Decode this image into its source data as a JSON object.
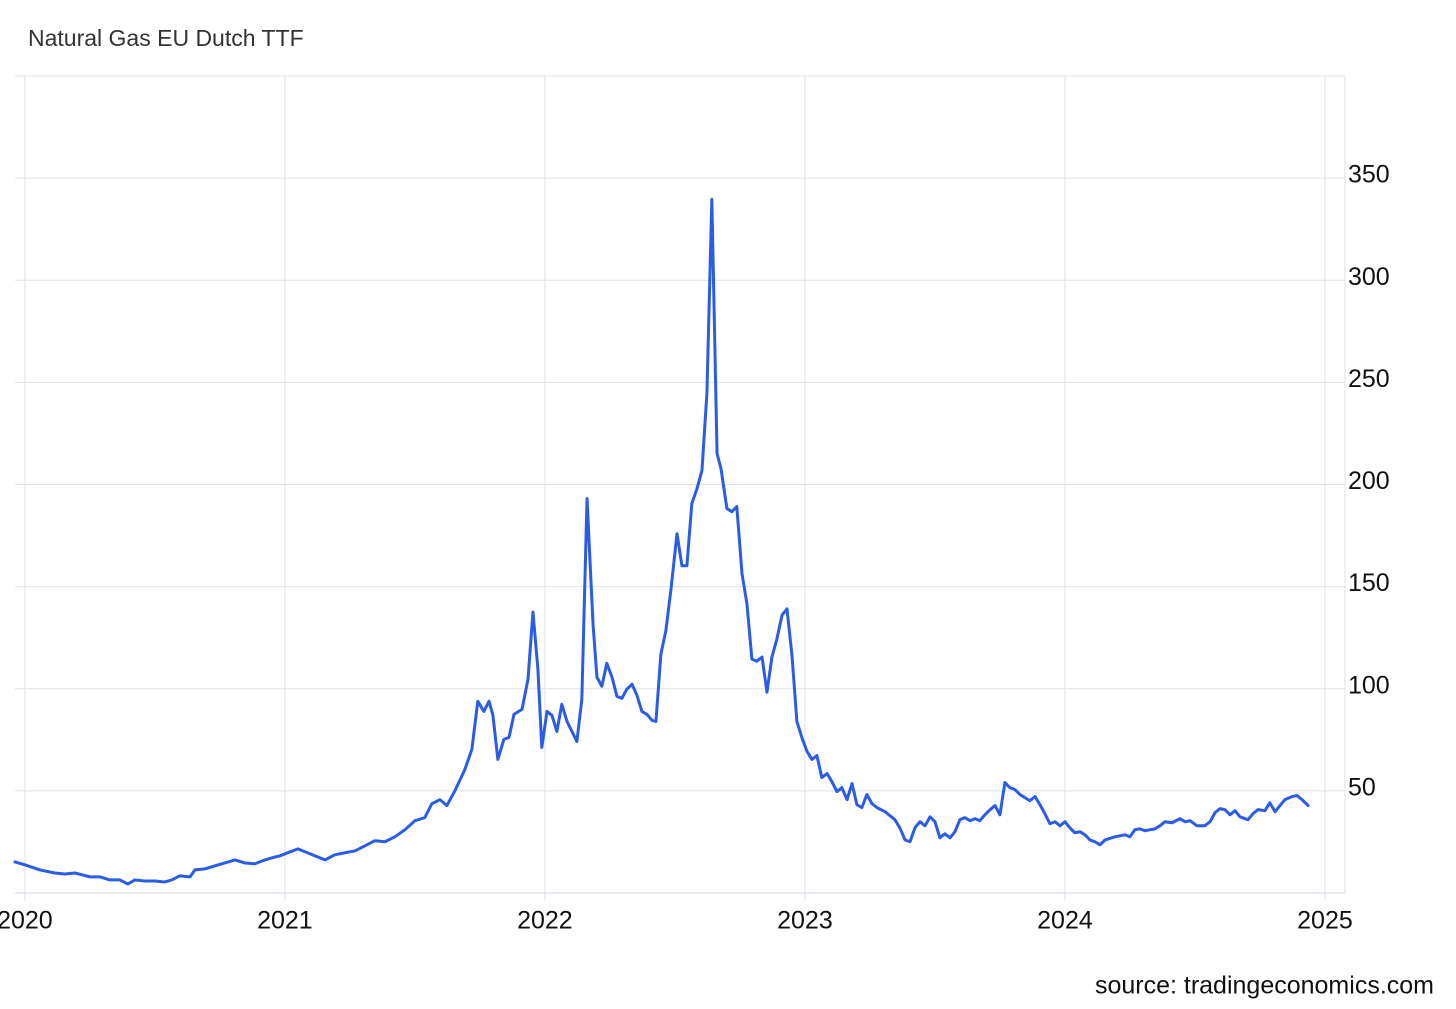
{
  "chart_data": {
    "type": "line",
    "title": "Natural Gas EU Dutch TTF",
    "source": "source: tradingeconomics.com",
    "color": "#2b5ce6",
    "grid": true,
    "xlim": [
      2019.962,
      2025.077
    ],
    "xticks": [
      2020,
      2021,
      2022,
      2023,
      2024,
      2025
    ],
    "ylim": [
      0,
      400
    ],
    "yticks": [
      50,
      100,
      150,
      200,
      250,
      300,
      350
    ],
    "x": [
      2019.962,
      2020.0,
      2020.058,
      2020.115,
      2020.154,
      2020.192,
      2020.25,
      2020.288,
      2020.327,
      2020.365,
      2020.396,
      2020.423,
      2020.462,
      2020.5,
      2020.538,
      2020.565,
      2020.596,
      2020.635,
      2020.654,
      2020.692,
      2020.731,
      2020.769,
      2020.808,
      2020.846,
      2020.885,
      2020.912,
      2020.95,
      2020.981,
      2021.019,
      2021.05,
      2021.096,
      2021.154,
      2021.192,
      2021.231,
      2021.269,
      2021.308,
      2021.346,
      2021.385,
      2021.423,
      2021.462,
      2021.5,
      2021.538,
      2021.565,
      2021.596,
      2021.623,
      2021.654,
      2021.692,
      2021.719,
      2021.742,
      2021.765,
      2021.785,
      2021.8,
      2021.819,
      2021.842,
      2021.862,
      2021.881,
      2021.912,
      2021.935,
      2021.954,
      2021.973,
      2021.988,
      2022.008,
      2022.027,
      2022.046,
      2022.065,
      2022.085,
      2022.123,
      2022.142,
      2022.162,
      2022.185,
      2022.2,
      2022.219,
      2022.238,
      2022.258,
      2022.277,
      2022.296,
      2022.315,
      2022.335,
      2022.354,
      2022.373,
      2022.392,
      2022.412,
      2022.427,
      2022.446,
      2022.465,
      2022.485,
      2022.508,
      2022.527,
      2022.546,
      2022.565,
      2022.585,
      2022.604,
      2022.623,
      2022.642,
      2022.662,
      2022.677,
      2022.7,
      2022.719,
      2022.738,
      2022.758,
      2022.777,
      2022.796,
      2022.815,
      2022.835,
      2022.854,
      2022.873,
      2022.892,
      2022.912,
      2022.931,
      2022.95,
      2022.969,
      2022.988,
      2023.008,
      2023.027,
      2023.046,
      2023.065,
      2023.085,
      2023.104,
      2023.123,
      2023.142,
      2023.162,
      2023.181,
      2023.2,
      2023.219,
      2023.238,
      2023.258,
      2023.277,
      2023.308,
      2023.346,
      2023.365,
      2023.385,
      2023.404,
      2023.423,
      2023.442,
      2023.462,
      2023.481,
      2023.5,
      2023.519,
      2023.538,
      2023.558,
      2023.577,
      2023.596,
      2023.615,
      2023.635,
      2023.654,
      2023.673,
      2023.692,
      2023.712,
      2023.731,
      2023.75,
      2023.769,
      2023.788,
      2023.808,
      2023.827,
      2023.846,
      2023.865,
      2023.885,
      2023.904,
      2023.923,
      2023.942,
      2023.962,
      2023.981,
      2024.0,
      2024.019,
      2024.038,
      2024.058,
      2024.077,
      2024.096,
      2024.115,
      2024.135,
      2024.154,
      2024.192,
      2024.231,
      2024.25,
      2024.269,
      2024.288,
      2024.308,
      2024.346,
      2024.365,
      2024.385,
      2024.412,
      2024.442,
      2024.462,
      2024.481,
      2024.508,
      2024.538,
      2024.558,
      2024.577,
      2024.596,
      2024.615,
      2024.635,
      2024.654,
      2024.673,
      2024.704,
      2024.723,
      2024.742,
      2024.769,
      2024.788,
      2024.808,
      2024.827,
      2024.846,
      2024.873,
      2024.892,
      2024.912,
      2024.935
    ],
    "values": [
      15.2,
      13.8,
      11.3,
      9.8,
      9.3,
      9.8,
      7.9,
      7.9,
      6.4,
      6.4,
      4.4,
      6.4,
      5.9,
      5.9,
      5.4,
      6.4,
      8.4,
      7.9,
      11.3,
      11.8,
      13.3,
      14.7,
      16.2,
      14.7,
      14.3,
      15.7,
      17.2,
      18.2,
      20.1,
      21.6,
      19.2,
      16.2,
      18.7,
      19.7,
      20.6,
      23.1,
      25.6,
      25.1,
      27.5,
      31,
      35.4,
      36.9,
      43.7,
      45.7,
      42.8,
      50.1,
      60.4,
      70.3,
      93.9,
      88.9,
      93.9,
      87,
      65.4,
      75.2,
      76.2,
      87.5,
      89.9,
      104.7,
      137.6,
      109.6,
      71.3,
      88.9,
      87,
      79.1,
      92.4,
      84,
      74.2,
      94.8,
      193.1,
      131.7,
      105.7,
      101.2,
      112.5,
      105.7,
      96.3,
      95.3,
      99.8,
      102.2,
      96.8,
      88.9,
      87.5,
      84.5,
      84,
      117,
      128.3,
      148.9,
      175.9,
      160.2,
      160.2,
      190.7,
      198,
      206.9,
      244.7,
      339.6,
      215.2,
      207.9,
      188.2,
      186.7,
      189.2,
      156.3,
      141.5,
      114.5,
      113.5,
      115.5,
      98.3,
      115.5,
      124.3,
      136.1,
      139.1,
      116.5,
      84,
      76.2,
      69.3,
      65.4,
      67.3,
      56.5,
      58.5,
      54.5,
      49.6,
      51.6,
      45.7,
      53.6,
      43.2,
      41.8,
      48.2,
      43.7,
      41.8,
      39.8,
      35.9,
      31.9,
      26,
      25.1,
      31.9,
      34.9,
      32.9,
      37.3,
      34.9,
      27,
      29,
      27,
      30,
      35.9,
      36.9,
      35.4,
      36.4,
      35.4,
      38.3,
      40.8,
      42.8,
      38.3,
      54.1,
      51.6,
      50.6,
      48.2,
      46.7,
      45.2,
      47.2,
      43.2,
      38.8,
      33.9,
      34.9,
      32.9,
      34.9,
      31.9,
      29.5,
      30,
      28.5,
      26,
      25.1,
      23.6,
      26,
      27.5,
      28.5,
      27.5,
      31,
      31.4,
      30.5,
      31.4,
      32.9,
      34.9,
      34.4,
      36.4,
      34.9,
      35.4,
      32.9,
      32.9,
      34.9,
      39.3,
      41.3,
      40.8,
      38.3,
      40.3,
      37.3,
      35.9,
      38.8,
      40.8,
      40.3,
      44.2,
      39.8,
      42.8,
      45.7,
      47.2,
      47.7,
      45.7,
      42.8
    ]
  }
}
